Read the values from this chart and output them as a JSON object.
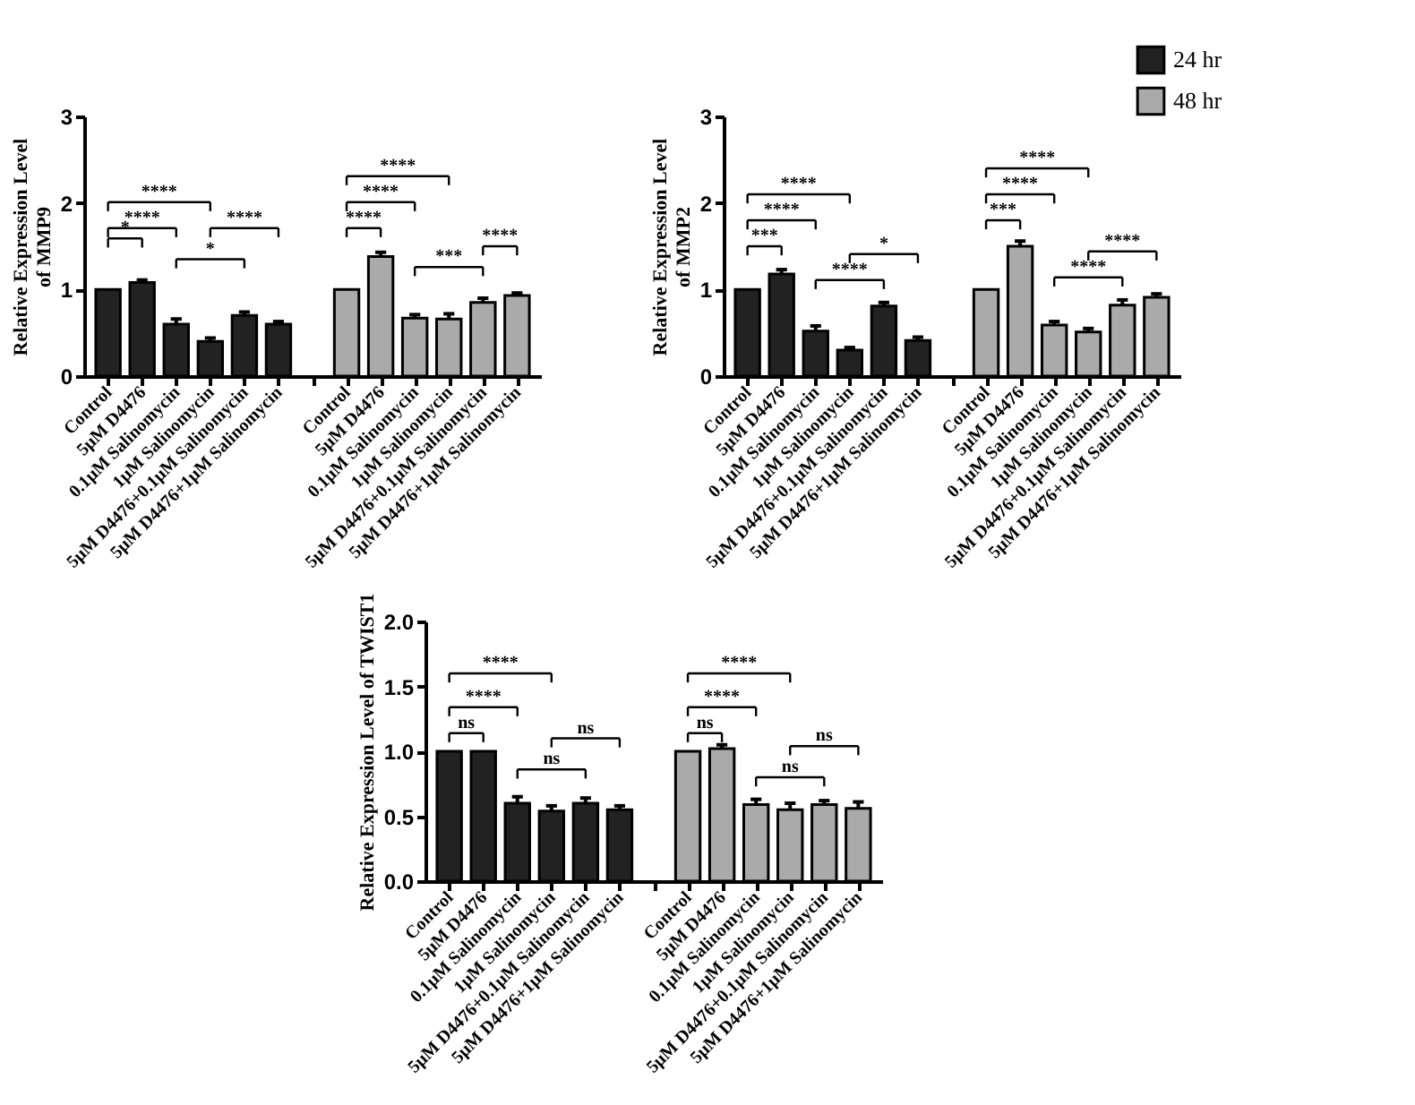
{
  "chart_data": [
    {
      "type": "bar",
      "ylabel": "Relative Expression Level\nof  MMP9",
      "categories": [
        "Control",
        "5μM D4476",
        "0.1μM Salinomycin",
        "1μM Salinomycin",
        "5μM D4476+0.1μM Salinomycin",
        "5μM D4476+1μM Salinomycin",
        null,
        "Control",
        "5μM D4476",
        "0.1μM Salinomycin",
        "1μM Salinomycin",
        "5μM D4476+0.1μM Salinomycin",
        "5μM D4476+1μM Salinomycin"
      ],
      "series": [
        {
          "color": "#222222",
          "values": [
            1.0,
            1.08,
            0.6,
            0.4,
            0.7,
            0.6,
            null,
            null,
            null,
            null,
            null,
            null,
            null
          ],
          "errors": [
            null,
            0.03,
            0.06,
            0.04,
            0.04,
            0.03,
            null,
            null,
            null,
            null,
            null,
            null,
            null
          ]
        },
        {
          "color": "#aaaaaa",
          "values": [
            null,
            null,
            null,
            null,
            null,
            null,
            null,
            1.0,
            1.38,
            0.67,
            0.66,
            0.85,
            0.93
          ],
          "errors": [
            null,
            null,
            null,
            null,
            null,
            null,
            null,
            null,
            0.05,
            0.04,
            0.06,
            0.05,
            0.03
          ]
        }
      ],
      "ylim": [
        0,
        3
      ],
      "yticks": [
        0,
        1,
        2,
        3
      ],
      "grid": false,
      "legend": false,
      "annotations": [
        "*",
        "****",
        "****",
        "*",
        "****",
        "****",
        "****",
        "****",
        "***",
        "****"
      ]
    },
    {
      "type": "bar",
      "ylabel": "Relative Expression Level\nof  MMP2",
      "categories": [
        "Control",
        "5μM D4476",
        "0.1μM Salinomycin",
        "1μM Salinomycin",
        "5μM D4476+0.1μM Salinomycin",
        "5μM D4476+1μM Salinomycin",
        null,
        "Control",
        "5μM D4476",
        "0.1μM Salinomycin",
        "1μM Salinomycin",
        "5μM D4476+0.1μM Salinomycin",
        "5μM D4476+1μM Salinomycin"
      ],
      "series": [
        {
          "name": "24 hr",
          "color": "#222222",
          "values": [
            1.0,
            1.18,
            0.52,
            0.3,
            0.81,
            0.41,
            null,
            null,
            null,
            null,
            null,
            null,
            null
          ],
          "errors": [
            null,
            0.05,
            0.06,
            0.03,
            0.04,
            0.04,
            null,
            null,
            null,
            null,
            null,
            null,
            null
          ]
        },
        {
          "name": "48 hr",
          "color": "#aaaaaa",
          "values": [
            null,
            null,
            null,
            null,
            null,
            null,
            null,
            1.0,
            1.5,
            0.59,
            0.51,
            0.82,
            0.91
          ],
          "errors": [
            null,
            null,
            null,
            null,
            null,
            null,
            null,
            null,
            0.06,
            0.04,
            0.04,
            0.06,
            0.04
          ]
        }
      ],
      "ylim": [
        0,
        3
      ],
      "yticks": [
        0,
        1,
        2,
        3
      ],
      "grid": false,
      "legend": "top right",
      "annotations": [
        "***",
        "****",
        "****",
        "****",
        "*",
        "***",
        "****",
        "****",
        "****",
        "****"
      ]
    },
    {
      "type": "bar",
      "ylabel": "Relative Expression Level of  TWIST1",
      "categories": [
        "Control",
        "5μM D4476",
        "0.1μM Salinomycin",
        "1μM Salinomycin",
        "5μM D4476+0.1μM Salinomycin",
        "5μM D4476+1μM Salinomycin",
        null,
        "Control",
        "5μM D4476",
        "0.1μM Salinomycin",
        "1μM Salinomycin",
        "5μM D4476+0.1μM Salinomycin",
        "5μM D4476+1μM Salinomycin"
      ],
      "series": [
        {
          "color": "#222222",
          "values": [
            1.0,
            1.0,
            0.6,
            0.54,
            0.6,
            0.55,
            null,
            null,
            null,
            null,
            null,
            null,
            null
          ],
          "errors": [
            null,
            null,
            0.05,
            0.04,
            0.04,
            0.03,
            null,
            null,
            null,
            null,
            null,
            null,
            null
          ]
        },
        {
          "color": "#aaaaaa",
          "values": [
            null,
            null,
            null,
            null,
            null,
            null,
            null,
            1.0,
            1.02,
            0.59,
            0.55,
            0.59,
            0.56
          ],
          "errors": [
            null,
            null,
            null,
            null,
            null,
            null,
            null,
            null,
            0.03,
            0.04,
            0.05,
            0.03,
            0.05
          ]
        }
      ],
      "ylim": [
        0,
        2
      ],
      "yticks": [
        {
          "value": 0,
          "label": "0.0"
        },
        0.5,
        {
          "value": 1,
          "label": "1.0"
        },
        1.5,
        {
          "value": 2,
          "label": "2.0"
        }
      ],
      "grid": false,
      "legend": false,
      "annotations": [
        "ns",
        "****",
        "****",
        "ns",
        "ns",
        "ns",
        "****",
        "****",
        "ns",
        "ns"
      ]
    }
  ]
}
